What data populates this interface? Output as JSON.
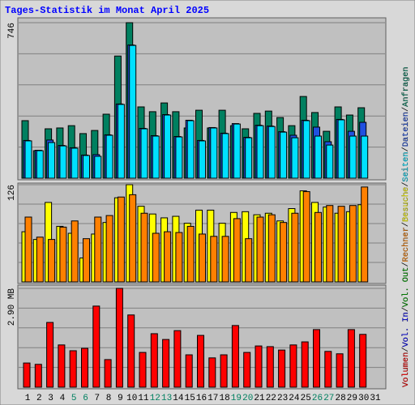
{
  "title": "Tages-Statistik im Monat April 2025",
  "separator": "/",
  "chart_data": [
    {
      "type": "bar",
      "ylim": [
        0,
        746
      ],
      "yticks": [
        746
      ],
      "series": [
        {
          "name": "Anfragen",
          "color": "#008060",
          "values": [
            276,
            132,
            237,
            241,
            252,
            214,
            229,
            307,
            586,
            746,
            342,
            319,
            361,
            319,
            241,
            326,
            241,
            326,
            252,
            237,
            311,
            322,
            291,
            252,
            392,
            315,
            225,
            342,
            303,
            338,
            null
          ]
        },
        {
          "name": "Dateien",
          "color": "#2050e0",
          "values": [
            181,
            134,
            183,
            157,
            146,
            111,
            113,
            208,
            356,
            639,
            239,
            204,
            305,
            200,
            278,
            181,
            243,
            216,
            262,
            196,
            254,
            250,
            223,
            206,
            278,
            245,
            175,
            282,
            225,
            268,
            null
          ]
        },
        {
          "name": "Seiten",
          "color": "#00e0ff",
          "values": [
            179,
            132,
            171,
            155,
            144,
            109,
            105,
            206,
            354,
            637,
            237,
            202,
            303,
            198,
            276,
            179,
            241,
            214,
            260,
            194,
            252,
            248,
            221,
            194,
            276,
            202,
            159,
            280,
            202,
            202,
            null
          ]
        }
      ]
    },
    {
      "type": "bar",
      "ylim": [
        0,
        126
      ],
      "yticks": [
        126
      ],
      "series": [
        {
          "name": "Besuche",
          "color": "#ffff00",
          "values": [
            65,
            55,
            103,
            72,
            63,
            31,
            62,
            77,
            109,
            126,
            98,
            88,
            83,
            85,
            76,
            93,
            93,
            76,
            90,
            91,
            87,
            89,
            79,
            95,
            118,
            103,
            97,
            89,
            91,
            100,
            null
          ]
        },
        {
          "name": "Rechner",
          "color": "#ff8000",
          "values": [
            84,
            58,
            55,
            71,
            79,
            56,
            84,
            86,
            110,
            113,
            89,
            63,
            65,
            64,
            72,
            62,
            59,
            59,
            82,
            56,
            84,
            87,
            77,
            89,
            117,
            90,
            99,
            98,
            99,
            123,
            null
          ]
        }
      ]
    },
    {
      "type": "bar",
      "ylim": [
        0,
        2.9
      ],
      "yticks": [
        {
          "value": 2.9,
          "label": "2.90 MB"
        }
      ],
      "categories": [
        "1",
        "2",
        "3",
        "4",
        "5",
        "6",
        "7",
        "8",
        "9",
        "10",
        "11",
        "12",
        "13",
        "14",
        "15",
        "16",
        "17",
        "18",
        "19",
        "20",
        "21",
        "22",
        "23",
        "24",
        "25",
        "26",
        "27",
        "28",
        "29",
        "30",
        "31"
      ],
      "weekend": [
        false,
        false,
        false,
        false,
        true,
        true,
        false,
        false,
        false,
        false,
        false,
        true,
        true,
        false,
        false,
        false,
        false,
        false,
        true,
        true,
        false,
        false,
        false,
        false,
        false,
        true,
        true,
        false,
        false,
        false,
        false
      ],
      "weekend_color": "#008060",
      "series": [
        {
          "name": "Volumen",
          "color": "#ff0000",
          "values": [
            0.71,
            0.67,
            1.9,
            1.24,
            1.07,
            1.14,
            2.38,
            0.81,
            2.9,
            2.12,
            1.02,
            1.57,
            1.4,
            1.66,
            0.95,
            1.52,
            0.86,
            0.95,
            1.81,
            1.02,
            1.21,
            1.19,
            1.09,
            1.24,
            1.33,
            1.69,
            1.05,
            0.98,
            1.69,
            1.55,
            null
          ]
        }
      ],
      "extra_legend": [
        {
          "name": "Vol. In",
          "color": "#0000ff"
        },
        {
          "name": "Vol. Out",
          "color": "#00a000"
        }
      ]
    }
  ]
}
